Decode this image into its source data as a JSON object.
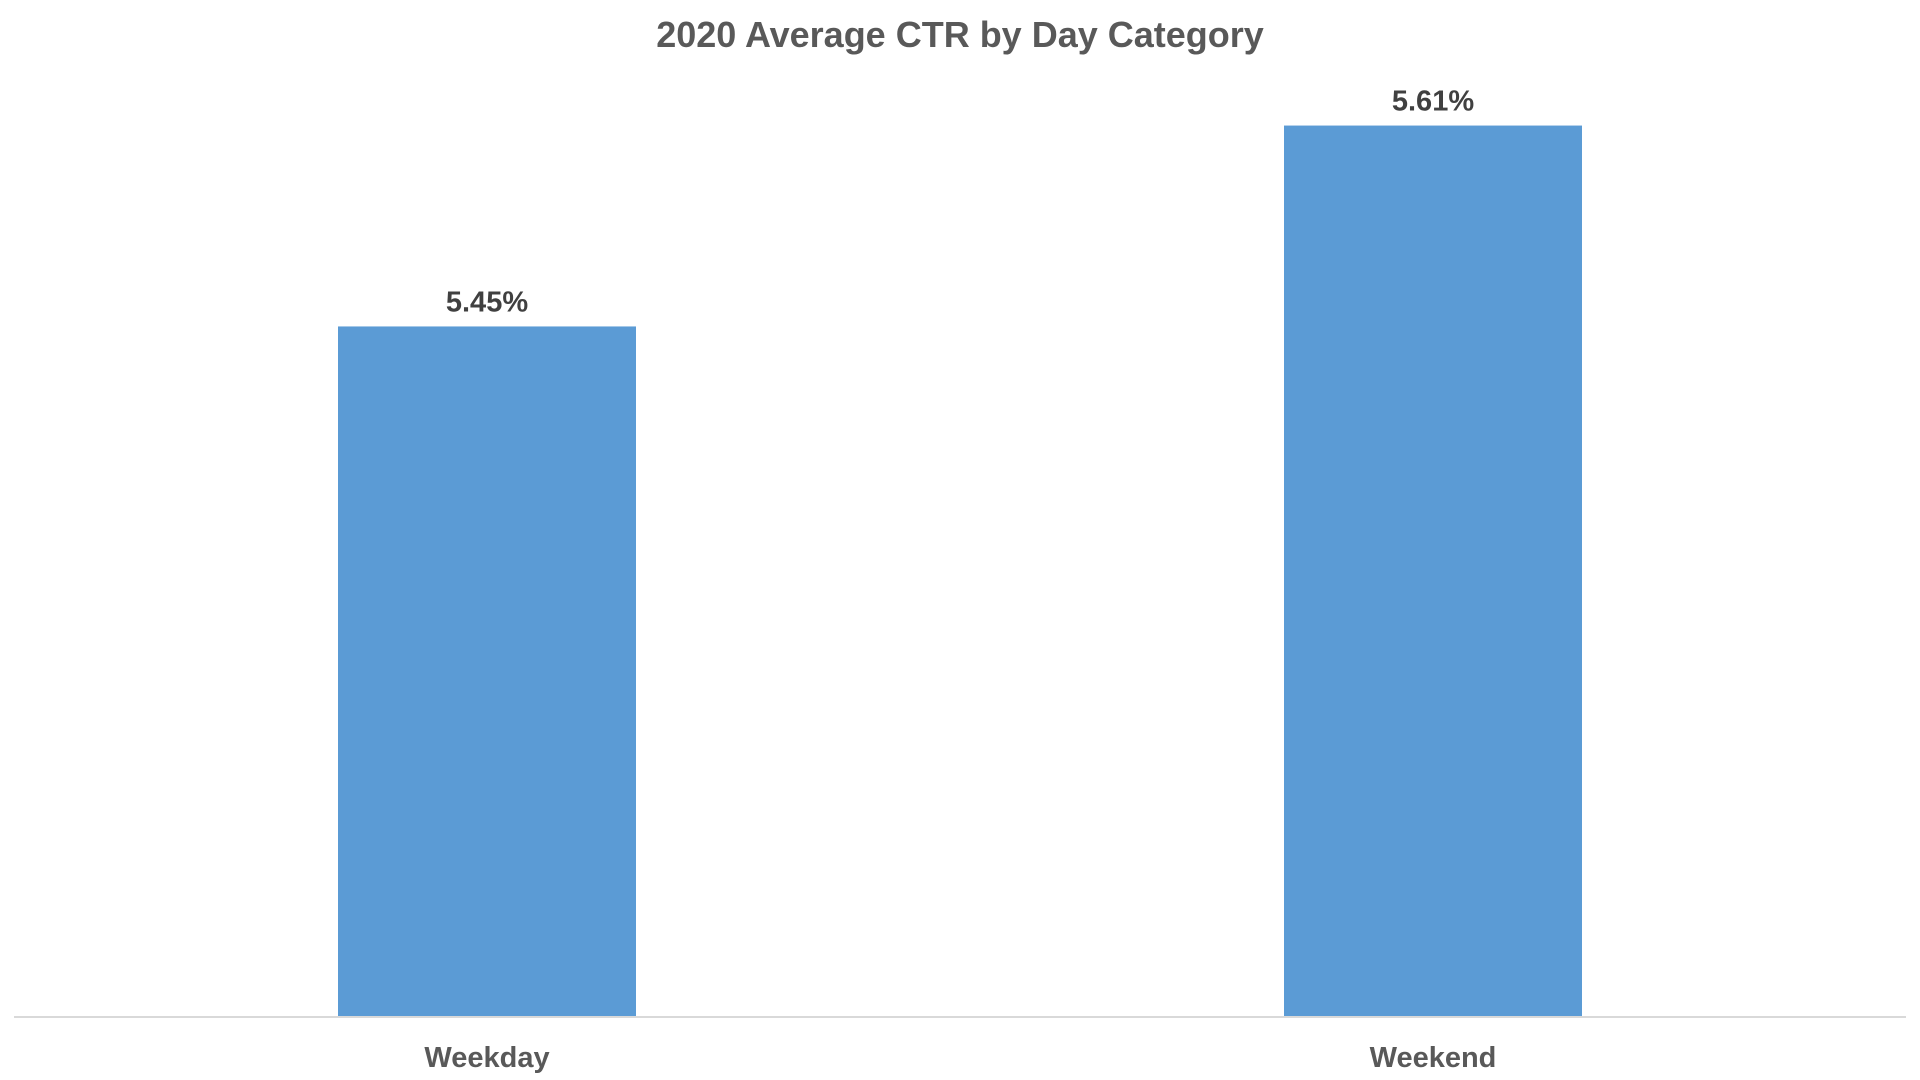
{
  "chart_data": {
    "type": "bar",
    "title": "2020 Average CTR by Day Category",
    "categories": [
      "Weekday",
      "Weekend"
    ],
    "values": [
      5.45,
      5.61
    ],
    "data_labels": [
      "5.45%",
      "5.61%"
    ],
    "ylim": [
      4.9,
      5.71
    ],
    "grid": false,
    "legend": "none",
    "colors": {
      "bar": "#5b9bd5",
      "title": "#595959",
      "data_label": "#404040",
      "tick_label": "#595959",
      "axis": "#d9d9d9"
    }
  }
}
